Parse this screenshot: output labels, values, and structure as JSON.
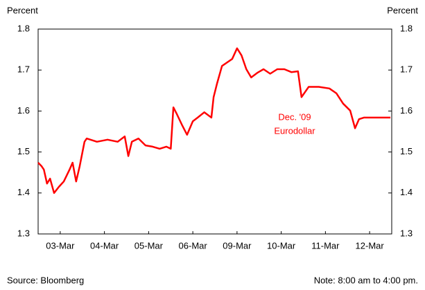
{
  "chart_data": {
    "type": "line",
    "y_label_left": "Percent",
    "y_label_right": "Percent",
    "annotation": [
      "Dec. '09",
      "Eurodollar"
    ],
    "source": "Source: Bloomberg",
    "note": "Note: 8:00 am to 4:00 pm.",
    "xlim": [
      0,
      8
    ],
    "xticks": [
      {
        "value": 0.5,
        "label": "03-Mar"
      },
      {
        "value": 1.5,
        "label": "04-Mar"
      },
      {
        "value": 2.5,
        "label": "05-Mar"
      },
      {
        "value": 3.5,
        "label": "06-Mar"
      },
      {
        "value": 4.5,
        "label": "09-Mar"
      },
      {
        "value": 5.5,
        "label": "10-Mar"
      },
      {
        "value": 6.5,
        "label": "11-Mar"
      },
      {
        "value": 7.5,
        "label": "12-Mar"
      }
    ],
    "ylim": [
      1.3,
      1.8
    ],
    "yticks": [
      1.3,
      1.4,
      1.5,
      1.6,
      1.7,
      1.8
    ],
    "y2lim": [
      1.3,
      1.8
    ],
    "y2ticks": [
      1.3,
      1.4,
      1.5,
      1.6,
      1.7,
      1.8
    ],
    "x": [
      0,
      0.08,
      0.13,
      0.2,
      0.27,
      0.36,
      0.47,
      0.58,
      0.71,
      0.78,
      0.86,
      0.94,
      1.05,
      1.1,
      1.33,
      1.57,
      1.8,
      1.96,
      2.04,
      2.12,
      2.27,
      2.43,
      2.59,
      2.75,
      2.9,
      3.0,
      3.06,
      3.14,
      3.25,
      3.37,
      3.5,
      3.61,
      3.76,
      3.92,
      3.97,
      4.05,
      4.16,
      4.28,
      4.39,
      4.5,
      4.6,
      4.71,
      4.82,
      4.97,
      5.1,
      5.25,
      5.41,
      5.57,
      5.73,
      5.88,
      5.96,
      6.12,
      6.35,
      6.59,
      6.75,
      6.9,
      7.06,
      7.17,
      7.26,
      7.37,
      7.97
    ],
    "series": [
      {
        "color": "#ff0000",
        "values": [
          1.474,
          1.465,
          1.457,
          1.423,
          1.435,
          1.4,
          1.415,
          1.428,
          1.457,
          1.474,
          1.428,
          1.465,
          1.525,
          1.533,
          1.525,
          1.53,
          1.525,
          1.538,
          1.49,
          1.525,
          1.533,
          1.516,
          1.513,
          1.508,
          1.513,
          1.508,
          1.609,
          1.592,
          1.567,
          1.542,
          1.575,
          1.584,
          1.597,
          1.584,
          1.634,
          1.668,
          1.71,
          1.719,
          1.727,
          1.753,
          1.736,
          1.702,
          1.682,
          1.694,
          1.702,
          1.691,
          1.702,
          1.702,
          1.695,
          1.697,
          1.634,
          1.659,
          1.659,
          1.655,
          1.643,
          1.618,
          1.601,
          1.558,
          1.58,
          1.584,
          1.584
        ]
      }
    ]
  }
}
